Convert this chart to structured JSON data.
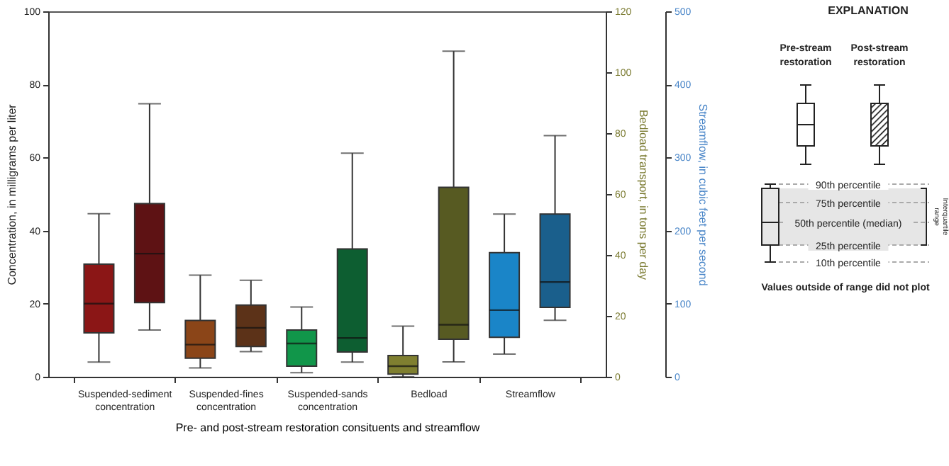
{
  "chart_data": {
    "type": "box",
    "xlabel": "Pre- and post-stream restoration consituents and streamflow",
    "ylabel": "Concentration, in milligrams per liter",
    "y2label": "Bedload transport, in tons per day",
    "y3label": "Streamflow, in cubic feet per second",
    "categories": [
      "Suspended-sediment concentration",
      "Suspended-fines concentration",
      "Suspended-sands concentration",
      "Bedload",
      "Streamflow"
    ],
    "ylim": [
      0,
      100
    ],
    "yticks": [
      0,
      20,
      40,
      60,
      80,
      100
    ],
    "y2lim": [
      0,
      120
    ],
    "y2ticks": [
      0,
      20,
      40,
      60,
      80,
      100,
      120
    ],
    "y3lim": [
      0,
      500
    ],
    "y3ticks": [
      0,
      100,
      200,
      300,
      400,
      500
    ],
    "series": [
      {
        "axis": "y",
        "colors": [
          "#8b1616",
          "#8b4518",
          "#11964a",
          null,
          null
        ],
        "boxes": [
          {
            "low": 4,
            "q1": 12,
            "median": 20,
            "q3": 30.8,
            "high": 44.6
          },
          {
            "low": 2.4,
            "q1": 5.1,
            "median": 8.8,
            "q3": 15.4,
            "high": 27.8
          },
          {
            "low": 1.1,
            "q1": 2.9,
            "median": 9.1,
            "q3": 12.8,
            "high": 19.1
          },
          null,
          null
        ]
      },
      {
        "axis": "y",
        "colors": [
          "#5e1214",
          "#5c3218",
          "#0d5e31",
          null,
          null
        ],
        "boxes": [
          {
            "low": 12.8,
            "q1": 20.3,
            "median": 33.7,
            "q3": 47.4,
            "high": 74.7
          },
          {
            "low": 6.9,
            "q1": 8.3,
            "median": 13.4,
            "q3": 19.6,
            "high": 26.4
          },
          {
            "low": 4,
            "q1": 6.8,
            "median": 10.6,
            "q3": 35,
            "high": 61.2
          },
          null,
          null
        ]
      },
      {
        "axis": "y2",
        "colors": [
          null,
          null,
          null,
          "#7f7f30",
          null
        ],
        "boxes": [
          null,
          null,
          null,
          {
            "low": 0,
            "q1": 0.9,
            "median": 3.5,
            "q3": 7,
            "high": 16.6
          },
          null
        ]
      },
      {
        "axis": "y2",
        "colors": [
          null,
          null,
          null,
          "#575a22",
          null
        ],
        "boxes": [
          null,
          null,
          null,
          {
            "low": 4.9,
            "q1": 12.3,
            "median": 17.1,
            "q3": 62.2,
            "high": 106.9
          },
          null
        ]
      },
      {
        "axis": "y3",
        "colors": [
          null,
          null,
          null,
          null,
          "#1a85c8"
        ],
        "boxes": [
          null,
          null,
          null,
          null,
          {
            "low": 31,
            "q1": 54,
            "median": 91.2,
            "q3": 169.7,
            "high": 222.6
          }
        ]
      },
      {
        "axis": "y3",
        "colors": [
          null,
          null,
          null,
          null,
          "#1a5f8c"
        ],
        "boxes": [
          null,
          null,
          null,
          null,
          {
            "low": 77.2,
            "q1": 94.9,
            "median": 129.6,
            "q3": 222.6,
            "high": 330
          }
        ]
      }
    ],
    "annotations": [
      "EXPLANATION",
      "Pre-stream restoration",
      "Post-stream restoration",
      "90th percentile",
      "75th percentile",
      "50th percentile (median)",
      "25th percentile",
      "10th percentile",
      "Interquartile range",
      "Values outside of range did not plot"
    ]
  }
}
